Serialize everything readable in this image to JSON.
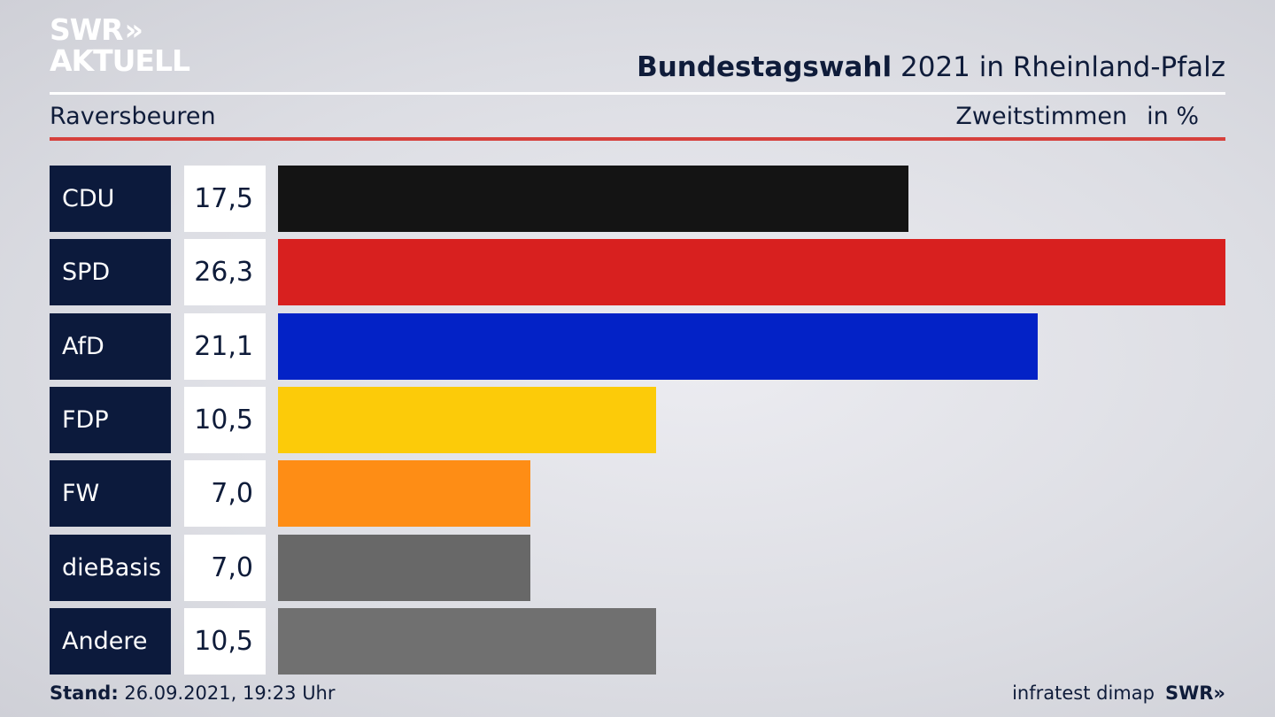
{
  "logo": {
    "line1": "SWR",
    "chevrons": "»",
    "line2": "AKTUELL"
  },
  "header": {
    "title_bold": "Bundestagswahl",
    "title_rest": "2021 in Rheinland-Pfalz",
    "location": "Raversbeuren",
    "measure": "Zweitstimmen",
    "unit": "in %"
  },
  "chart_data": {
    "type": "bar",
    "orientation": "horizontal",
    "title": "Bundestagswahl 2021 in Rheinland-Pfalz",
    "subtitle": "Raversbeuren",
    "categories": [
      "CDU",
      "SPD",
      "AfD",
      "FDP",
      "FW",
      "dieBasis",
      "Andere"
    ],
    "values": [
      17.5,
      26.3,
      21.1,
      10.5,
      7.0,
      7.0,
      10.5
    ],
    "value_labels": [
      "17,5",
      "26,3",
      "21,1",
      "10,5",
      "7,0",
      "7,0",
      "10,5"
    ],
    "colors": [
      "#141414",
      "#d8201f",
      "#0322c6",
      "#fccb09",
      "#fe8d15",
      "#686868",
      "#707070"
    ],
    "xlim": [
      0,
      26.3
    ],
    "grid": false,
    "legend": "none"
  },
  "footer": {
    "stand_label": "Stand:",
    "stand_value": "26.09.2021, 19:23 Uhr",
    "source": "infratest dimap",
    "brand": "SWR",
    "brand_chevrons": "»"
  }
}
